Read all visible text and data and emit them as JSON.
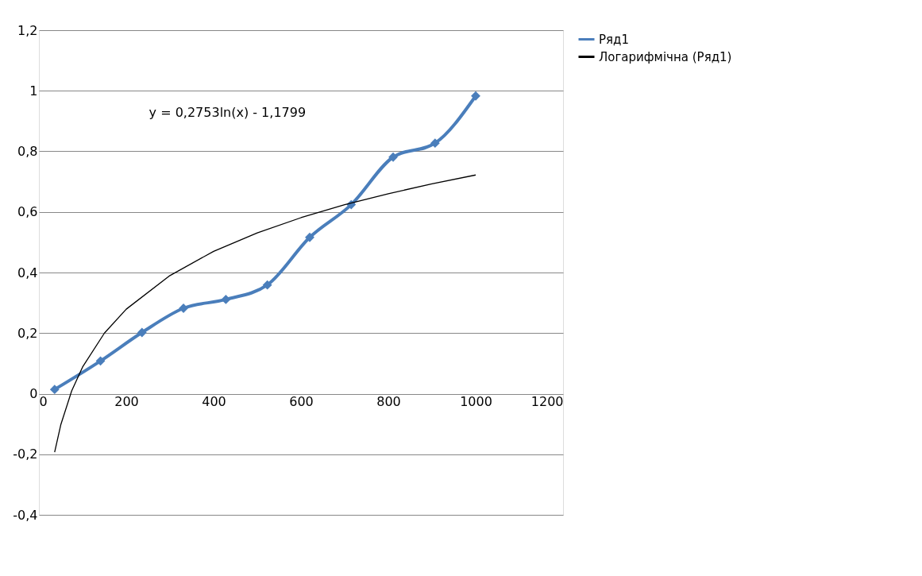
{
  "chart_data": {
    "type": "line",
    "xlim": [
      0,
      1200
    ],
    "xticks": [
      0,
      200,
      400,
      600,
      800,
      1000,
      1200
    ],
    "ylim": [
      -0.4,
      1.2
    ],
    "yticks": [
      {
        "value": -0.4,
        "label": "-0,4"
      },
      {
        "value": -0.2,
        "label": "-0,2"
      },
      {
        "value": 0,
        "label": "0"
      },
      {
        "value": 0.2,
        "label": "0,2"
      },
      {
        "value": 0.4,
        "label": "0,4"
      },
      {
        "value": 0.6,
        "label": "0,6"
      },
      {
        "value": 0.8,
        "label": "0,8"
      },
      {
        "value": 1,
        "label": "1"
      },
      {
        "value": 1.2,
        "label": "1,2"
      }
    ],
    "grid": "y",
    "legend": "right",
    "annotations": [
      "y = 0,2753ln(x) - 1,1799"
    ],
    "series": [
      {
        "name": "Ряд1",
        "color": "#4a7ebb",
        "marker": "diamond",
        "x": [
          36,
          141,
          236,
          331,
          428,
          523,
          620,
          715,
          811,
          907,
          1000
        ],
        "values": [
          0.014,
          0.108,
          0.202,
          0.282,
          0.311,
          0.359,
          0.516,
          0.624,
          0.781,
          0.827,
          0.983
        ]
      },
      {
        "name": "Логарифмічна (Ряд1)",
        "color": "#000000",
        "marker": "none",
        "x": [
          36,
          50,
          75,
          100,
          150,
          200,
          300,
          400,
          500,
          600,
          700,
          800,
          900,
          1000
        ],
        "values": [
          -0.193,
          -0.103,
          0.009,
          0.088,
          0.2,
          0.279,
          0.39,
          0.47,
          0.531,
          0.581,
          0.624,
          0.66,
          0.693,
          0.722
        ]
      }
    ]
  }
}
